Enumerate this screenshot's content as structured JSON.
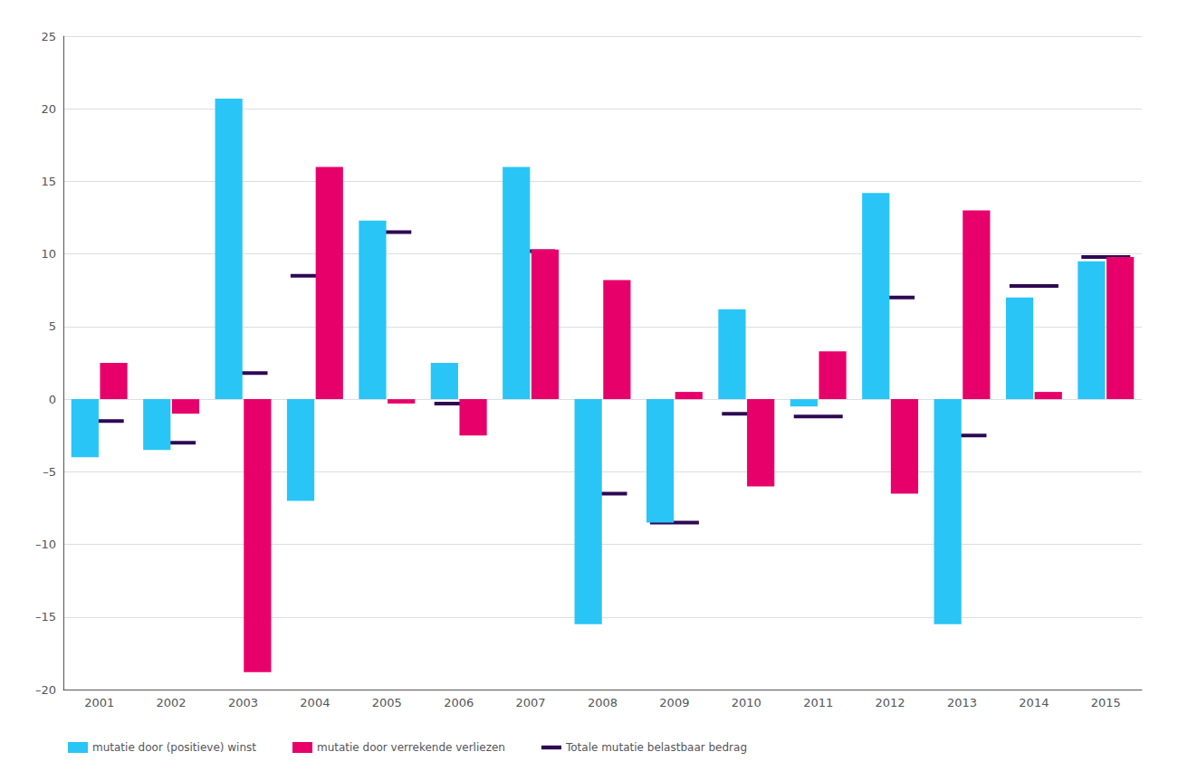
{
  "chart_data": {
    "type": "bar",
    "categories": [
      "2001",
      "2002",
      "2003",
      "2004",
      "2005",
      "2006",
      "2007",
      "2008",
      "2009",
      "2010",
      "2011",
      "2012",
      "2013",
      "2014",
      "2015"
    ],
    "series": [
      {
        "name": "mutatie door (positieve) winst",
        "type": "bar",
        "color": "#29c5f6",
        "values": [
          -4.0,
          -3.5,
          20.7,
          -7.0,
          12.3,
          2.5,
          16.0,
          -15.5,
          -8.5,
          6.2,
          -0.5,
          14.2,
          -15.5,
          7.0,
          9.5
        ]
      },
      {
        "name": "mutatie door verrekende verliezen",
        "type": "bar",
        "color": "#e8006a",
        "values": [
          2.5,
          -1.0,
          -18.8,
          16.0,
          -0.3,
          -2.5,
          10.3,
          8.2,
          0.5,
          -6.0,
          3.3,
          -6.5,
          13.0,
          0.5,
          9.8
        ]
      },
      {
        "name": "Totale mutatie belastbaar bedrag",
        "type": "scatter",
        "marker": "hline",
        "color": "#2e0854",
        "values": [
          -1.5,
          -3.0,
          1.8,
          8.5,
          11.5,
          -0.3,
          10.2,
          -6.5,
          -8.5,
          -1.0,
          -1.2,
          7.0,
          -2.5,
          7.8,
          9.8
        ]
      }
    ],
    "ylim": [
      -20,
      25
    ],
    "yticks": [
      {
        "value": -20,
        "label": "–20"
      },
      {
        "value": -15,
        "label": "–15"
      },
      {
        "value": -10,
        "label": "–10"
      },
      {
        "value": -5,
        "label": "–5"
      },
      0,
      5,
      10,
      15,
      20,
      25
    ],
    "grid": true,
    "legend": "lower left"
  }
}
